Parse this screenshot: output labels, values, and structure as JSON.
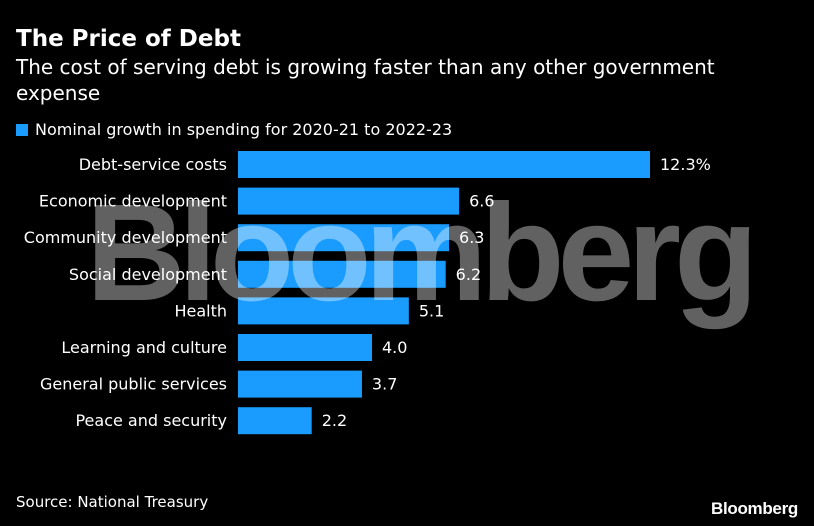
{
  "chart_data": {
    "type": "bar",
    "orientation": "horizontal",
    "title": "The Price of Debt",
    "subtitle": "The cost of serving debt is growing faster than any other government expense",
    "legend": [
      "Nominal growth in spending for 2020-21 to 2022-23"
    ],
    "categories": [
      "Debt-service costs",
      "Economic development",
      "Community development",
      "Social development",
      "Health",
      "Learning and culture",
      "General public services",
      "Peace and security"
    ],
    "values": [
      12.3,
      6.6,
      6.3,
      6.2,
      5.1,
      4.0,
      3.7,
      2.2
    ],
    "value_labels": [
      "12.3%",
      "6.6",
      "6.3",
      "6.2",
      "5.1",
      "4.0",
      "3.7",
      "2.2"
    ],
    "xlim": [
      0,
      12.3
    ],
    "xlabel": "",
    "ylabel": "",
    "grid": false,
    "legend_position": "top-left",
    "bar_color": "#1a9cff"
  },
  "source": "Source: National Treasury",
  "brand": "Bloomberg",
  "watermark": "Bloomberg"
}
